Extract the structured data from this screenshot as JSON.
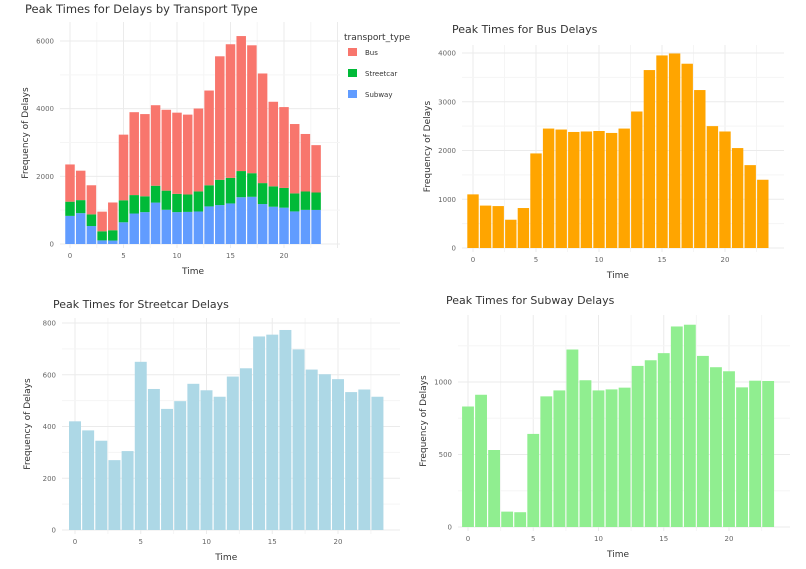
{
  "chart_data": [
    {
      "type": "bar",
      "stacked": true,
      "title": "Peak Times for Delays by Transport Type",
      "xlabel": "Time",
      "ylabel": "Frequency of Delays",
      "x": [
        0,
        1,
        2,
        3,
        4,
        5,
        6,
        7,
        8,
        9,
        10,
        11,
        12,
        13,
        14,
        15,
        16,
        17,
        18,
        19,
        20,
        21,
        22,
        23
      ],
      "xticks": [
        0,
        5,
        10,
        15,
        20
      ],
      "yticks": [
        0,
        2000,
        4000,
        6000
      ],
      "ylim": [
        0,
        6300
      ],
      "grid": true,
      "legend": {
        "title": "transport_type",
        "placement": "right"
      },
      "series": [
        {
          "name": "Subway",
          "color": "#619CFF",
          "values": [
            831,
            912,
            531,
            106,
            102,
            642,
            901,
            942,
            1224,
            1012,
            942,
            949,
            961,
            1111,
            1150,
            1199,
            1383,
            1395,
            1180,
            1102,
            1074,
            963,
            1009,
            1007
          ]
        },
        {
          "name": "Streetcar",
          "color": "#00BA38",
          "values": [
            420,
            385,
            345,
            270,
            305,
            650,
            545,
            468,
            498,
            565,
            540,
            515,
            593,
            625,
            748,
            755,
            773,
            698,
            620,
            602,
            583,
            533,
            543,
            515
          ]
        },
        {
          "name": "Bus",
          "color": "#F8766D",
          "values": [
            1100,
            870,
            860,
            580,
            820,
            1940,
            2450,
            2430,
            2380,
            2390,
            2400,
            2360,
            2450,
            2800,
            3650,
            3950,
            3990,
            3780,
            3240,
            2500,
            2390,
            2050,
            1700,
            1400
          ]
        }
      ],
      "legend_order": [
        "Bus",
        "Streetcar",
        "Subway"
      ]
    },
    {
      "type": "bar",
      "title": "Peak Times for Bus Delays",
      "xlabel": "Time",
      "ylabel": "Frequency of Delays",
      "color": "#FFA500",
      "x": [
        0,
        1,
        2,
        3,
        4,
        5,
        6,
        7,
        8,
        9,
        10,
        11,
        12,
        13,
        14,
        15,
        16,
        17,
        18,
        19,
        20,
        21,
        22,
        23
      ],
      "values": [
        1100,
        870,
        860,
        580,
        820,
        1940,
        2450,
        2430,
        2380,
        2390,
        2400,
        2360,
        2450,
        2800,
        3650,
        3950,
        3990,
        3780,
        3240,
        2500,
        2390,
        2050,
        1700,
        1400
      ],
      "xticks": [
        0,
        5,
        10,
        15,
        20
      ],
      "yticks": [
        0,
        1000,
        2000,
        3000,
        4000
      ],
      "ylim": [
        0,
        4150
      ],
      "grid": true
    },
    {
      "type": "bar",
      "title": "Peak Times for Streetcar Delays",
      "xlabel": "Time",
      "ylabel": "Frequency of Delays",
      "color": "#ADD8E6",
      "x": [
        0,
        1,
        2,
        3,
        4,
        5,
        6,
        7,
        8,
        9,
        10,
        11,
        12,
        13,
        14,
        15,
        16,
        17,
        18,
        19,
        20,
        21,
        22,
        23
      ],
      "values": [
        420,
        385,
        345,
        270,
        305,
        650,
        545,
        468,
        498,
        565,
        540,
        515,
        593,
        625,
        748,
        755,
        773,
        698,
        620,
        602,
        583,
        533,
        543,
        515
      ],
      "xticks": [
        0,
        5,
        10,
        15,
        20
      ],
      "yticks": [
        0,
        200,
        400,
        600,
        800
      ],
      "ylim": [
        0,
        810
      ],
      "grid": true
    },
    {
      "type": "bar",
      "title": "Peak Times for Subway Delays",
      "xlabel": "Time",
      "ylabel": "Frequency of Delays",
      "color": "#90EE90",
      "x": [
        0,
        1,
        2,
        3,
        4,
        5,
        6,
        7,
        8,
        9,
        10,
        11,
        12,
        13,
        14,
        15,
        16,
        17,
        18,
        19,
        20,
        21,
        22,
        23
      ],
      "values": [
        831,
        912,
        531,
        106,
        102,
        642,
        901,
        942,
        1224,
        1012,
        942,
        949,
        961,
        1111,
        1150,
        1199,
        1383,
        1395,
        1180,
        1102,
        1074,
        963,
        1009,
        1007
      ],
      "xticks": [
        0,
        5,
        10,
        15,
        20
      ],
      "yticks": [
        0,
        500,
        1000
      ],
      "ylim": [
        0,
        1450
      ],
      "grid": true
    }
  ]
}
